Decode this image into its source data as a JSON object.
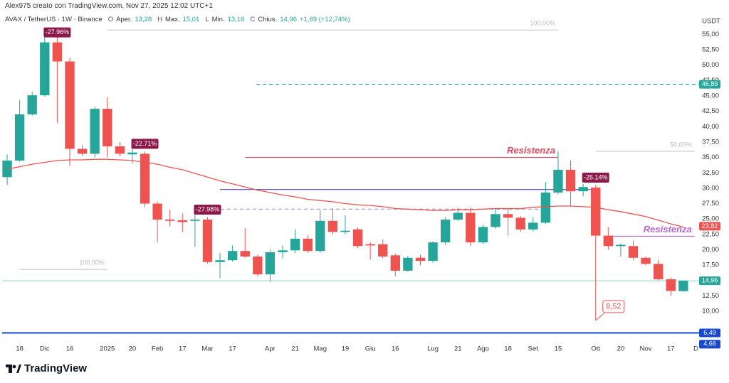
{
  "header": {
    "credit": "Alex975 creato con TradingView.com, Nov 27, 2025 12:02 UTC+1",
    "symbol": "AVAX / TetherUS · 1W · Binance",
    "ohlc": [
      {
        "key": "O",
        "name": "Aper.",
        "value": "13,28"
      },
      {
        "key": "H",
        "name": "Max.",
        "value": "15,01"
      },
      {
        "key": "L",
        "name": "Min.",
        "value": "13,16"
      },
      {
        "key": "C",
        "name": "Chius.",
        "value": "14,96"
      }
    ],
    "change": "+1,69 (+12,74%)"
  },
  "footer": {
    "brand": "TradingView"
  },
  "chart_data": {
    "type": "candlestick",
    "currency": "USDT",
    "up_color": "#26a69a",
    "down_color": "#ef5350",
    "grid": false,
    "open": [
      31.8,
      34.5,
      42.0,
      45.1,
      53.7,
      50.6,
      36.4,
      35.6,
      42.9,
      36.8,
      35.5,
      35.6,
      27.5,
      24.9,
      24.8,
      24.7,
      24.9,
      18.0,
      18.3,
      19.8,
      18.9,
      16.0,
      19.6,
      19.9,
      21.8,
      19.8,
      24.7,
      22.9,
      23.3,
      20.9,
      20.9,
      19.1,
      16.6,
      18.7,
      18.2,
      21.2,
      24.9,
      26.0,
      21.2,
      23.7,
      25.8,
      25.2,
      23.3,
      24.4,
      29.3,
      33.0,
      29.5,
      30.1,
      22.3,
      20.6,
      20.6,
      18.7,
      17.7,
      15.2,
      13.28
    ],
    "high": [
      35.5,
      44.3,
      45.7,
      55.6,
      55.0,
      51.2,
      37.0,
      43.2,
      44.8,
      37.5,
      37.0,
      36.0,
      27.8,
      26.5,
      25.9,
      26.0,
      25.3,
      19.5,
      20.7,
      23.5,
      19.2,
      20.1,
      20.7,
      23.3,
      22.4,
      26.4,
      26.7,
      25.6,
      23.6,
      21.2,
      21.7,
      19.4,
      19.0,
      19.2,
      21.4,
      25.3,
      26.9,
      26.9,
      24.0,
      26.7,
      26.7,
      25.5,
      25.3,
      31.0,
      36.0,
      34.5,
      30.7,
      30.5,
      23.7,
      21.0,
      21.5,
      18.9,
      18.3,
      15.5,
      15.01
    ],
    "low": [
      30.5,
      34.3,
      41.8,
      44.9,
      40.6,
      33.7,
      35.3,
      35.0,
      35.0,
      35.2,
      34.0,
      26.9,
      21.2,
      23.8,
      22.9,
      20.5,
      17.8,
      15.4,
      18.1,
      18.7,
      15.7,
      14.8,
      18.6,
      19.5,
      19.5,
      19.5,
      22.5,
      22.5,
      20.3,
      18.4,
      18.6,
      15.7,
      16.4,
      17.5,
      17.9,
      20.8,
      24.7,
      20.6,
      20.9,
      23.4,
      22.3,
      22.9,
      23.0,
      24.2,
      29.0,
      27.0,
      28.7,
      8.52,
      20.0,
      18.9,
      18.3,
      17.5,
      15.0,
      12.5,
      13.16
    ],
    "close": [
      34.5,
      42.0,
      45.1,
      53.7,
      50.6,
      36.4,
      35.6,
      42.9,
      36.8,
      35.6,
      35.8,
      27.5,
      24.9,
      24.7,
      24.5,
      24.9,
      18.0,
      18.3,
      19.8,
      18.9,
      16.0,
      19.6,
      19.9,
      21.8,
      19.8,
      24.7,
      22.9,
      23.1,
      20.6,
      20.7,
      18.9,
      16.6,
      18.7,
      18.2,
      21.2,
      24.9,
      26.0,
      21.2,
      23.7,
      25.8,
      25.2,
      23.3,
      24.4,
      29.3,
      33.0,
      29.5,
      30.2,
      22.3,
      20.6,
      20.8,
      18.7,
      17.7,
      15.2,
      13.3,
      14.96
    ],
    "ma": {
      "color": "#ef5350",
      "values": [
        33.1,
        33.5,
        33.9,
        34.2,
        34.5,
        34.6,
        34.6,
        34.7,
        34.7,
        34.6,
        34.5,
        34.2,
        33.9,
        33.4,
        33.0,
        32.4,
        31.8,
        31.2,
        30.7,
        30.2,
        29.7,
        29.3,
        28.9,
        28.6,
        28.2,
        28.0,
        27.8,
        27.5,
        27.3,
        27.2,
        27.0,
        26.7,
        26.6,
        26.5,
        26.4,
        26.4,
        26.5,
        26.5,
        26.6,
        26.7,
        26.7,
        26.7,
        26.9,
        27.0,
        27.1,
        27.1,
        27.0,
        26.9,
        26.5,
        26.2,
        25.8,
        25.4,
        24.8,
        24.2,
        23.7
      ]
    },
    "xlim": [
      -0.4,
      55.43
    ],
    "ylim": [
      4.7,
      59.2
    ],
    "xticks": [
      {
        "value": 1,
        "label": "18"
      },
      {
        "value": 3,
        "label": "Dic"
      },
      {
        "value": 5,
        "label": "16"
      },
      {
        "value": 8,
        "label": "2025"
      },
      {
        "value": 10,
        "label": "20"
      },
      {
        "value": 12,
        "label": "Feb"
      },
      {
        "value": 14,
        "label": "17"
      },
      {
        "value": 16,
        "label": "Mar"
      },
      {
        "value": 18,
        "label": "17"
      },
      {
        "value": 21,
        "label": "Apr"
      },
      {
        "value": 23,
        "label": "21"
      },
      {
        "value": 25,
        "label": "Mag"
      },
      {
        "value": 27,
        "label": "19"
      },
      {
        "value": 29,
        "label": "Giu"
      },
      {
        "value": 31,
        "label": "16"
      },
      {
        "value": 34,
        "label": "Lug"
      },
      {
        "value": 36,
        "label": "21"
      },
      {
        "value": 38,
        "label": "Ago"
      },
      {
        "value": 40,
        "label": "18"
      },
      {
        "value": 42,
        "label": "Set"
      },
      {
        "value": 44,
        "label": "15"
      },
      {
        "value": 47,
        "label": "Ott"
      },
      {
        "value": 49,
        "label": "20"
      },
      {
        "value": 51,
        "label": "Nov"
      },
      {
        "value": 53,
        "label": "17"
      },
      {
        "value": 55,
        "label": "D"
      }
    ],
    "yticks": [
      {
        "value": 10,
        "label": "10,00"
      },
      {
        "value": 12.5,
        "label": "12,50"
      },
      {
        "value": 15,
        "label": "15,00"
      },
      {
        "value": 17.5,
        "label": "17,50"
      },
      {
        "value": 20,
        "label": "20,00"
      },
      {
        "value": 22.5,
        "label": "22,50"
      },
      {
        "value": 25,
        "label": "25,00"
      },
      {
        "value": 27.5,
        "label": "27,50"
      },
      {
        "value": 30,
        "label": "30,00"
      },
      {
        "value": 32.5,
        "label": "32,50"
      },
      {
        "value": 35,
        "label": "35,00"
      },
      {
        "value": 37.5,
        "label": "37,50"
      },
      {
        "value": 40,
        "label": "40,00"
      },
      {
        "value": 42.5,
        "label": "42,50"
      },
      {
        "value": 45,
        "label": "45,00"
      },
      {
        "value": 47.5,
        "label": "47,50"
      },
      {
        "value": 50,
        "label": "50,00"
      },
      {
        "value": 52.5,
        "label": "52,50"
      },
      {
        "value": 55,
        "label": "55,00"
      }
    ],
    "lines": [
      {
        "value": 55.7,
        "x0": 8,
        "x1": 44,
        "color": "#c8c8c8",
        "style": "solid",
        "label": "100,00%"
      },
      {
        "value": 46.89,
        "x0": 19.9,
        "x1": 55.43,
        "color": "#26a69a",
        "style": "dashed"
      },
      {
        "value": 36.0,
        "x0": 47,
        "x1": 54.9,
        "color": "#c8c8c8",
        "style": "solid",
        "label": "50,00%"
      },
      {
        "value": 35.0,
        "x0": 19,
        "x1": 44,
        "color": "#d94b5a",
        "style": "solid",
        "label": "Resistenza"
      },
      {
        "value": 29.8,
        "x0": 17,
        "x1": 46.6,
        "color": "#6a55c0",
        "style": "solid"
      },
      {
        "value": 26.6,
        "x0": 15,
        "x1": 42.5,
        "color": "#9a8fd0",
        "style": "dashed"
      },
      {
        "value": 22.2,
        "x0": 47.8,
        "x1": 54.9,
        "color": "#b865d0",
        "style": "solid",
        "label": "Resistenza"
      },
      {
        "value": 16.8,
        "x0": 1,
        "x1": 8,
        "color": "#c8c8c8",
        "style": "solid",
        "label": "100,00%"
      },
      {
        "value": 14.96,
        "x0": -0.4,
        "x1": 55.43,
        "color": "#a8dcd6",
        "style": "solid"
      },
      {
        "value": 6.49,
        "x0": -0.4,
        "x1": 55.43,
        "color": "#1848cc",
        "style": "bold"
      }
    ],
    "tags": [
      {
        "value": 46.89,
        "label": "46,89",
        "color": "#26a69a"
      },
      {
        "value": 23.82,
        "label": "23,82",
        "color": "#ef5350"
      },
      {
        "value": 14.96,
        "label": "14,96",
        "color": "#26a69a"
      },
      {
        "value": 6.49,
        "label": "6,49",
        "color": "#1848cc"
      },
      {
        "value": 4.66,
        "label": "4,66",
        "color": "#1848cc"
      }
    ],
    "boxes": [
      {
        "candle": 4,
        "label": "-27.96%"
      },
      {
        "candle": 11,
        "label": "-22.71%"
      },
      {
        "candle": 16,
        "label": "-27.98%"
      },
      {
        "candle": 47,
        "label": "-25.14%"
      }
    ],
    "low_label": {
      "candle": 47,
      "label": "8,52"
    }
  }
}
